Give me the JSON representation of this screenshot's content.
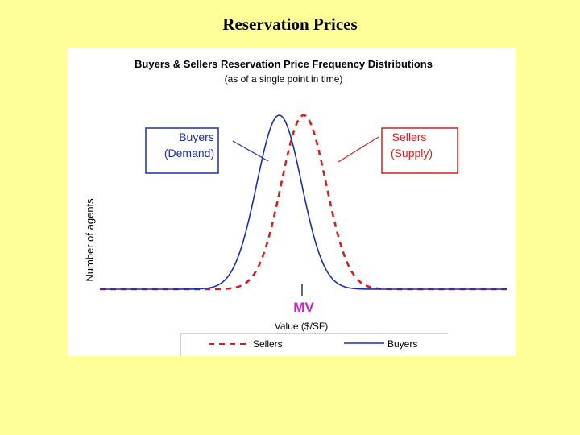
{
  "slide": {
    "title": "Reservation Prices"
  },
  "colors": {
    "background": "#ffff99",
    "buyers": "#1c2fa8",
    "sellers": "#d42020",
    "mv": "#cc22cc"
  },
  "chart_data": {
    "type": "line",
    "title": "Buyers & Sellers Reservation Price Frequency Distributions",
    "subtitle": "(as of a single point in time)",
    "ylabel": "Number of agents",
    "xlabel": "Value ($/SF)",
    "mv_label": "MV",
    "grid": false,
    "legend_position": "bottom",
    "series": [
      {
        "name": "Sellers",
        "style": "dashed",
        "color": "#d42020",
        "mean": 0.5,
        "sd": 0.055,
        "peak": 1.0
      },
      {
        "name": "Buyers",
        "style": "solid",
        "color": "#1c2fa8",
        "mean": 0.44,
        "sd": 0.055,
        "peak": 1.0
      }
    ],
    "annotations": {
      "buyers_box": {
        "line1": "Buyers",
        "line2": "(Demand)"
      },
      "sellers_box": {
        "line1": "Sellers",
        "line2": "(Supply)"
      }
    },
    "legend": [
      {
        "label": "Sellers",
        "style": "dashed",
        "color": "#d42020"
      },
      {
        "label": "Buyers",
        "style": "solid",
        "color": "#1c2fa8"
      }
    ]
  }
}
